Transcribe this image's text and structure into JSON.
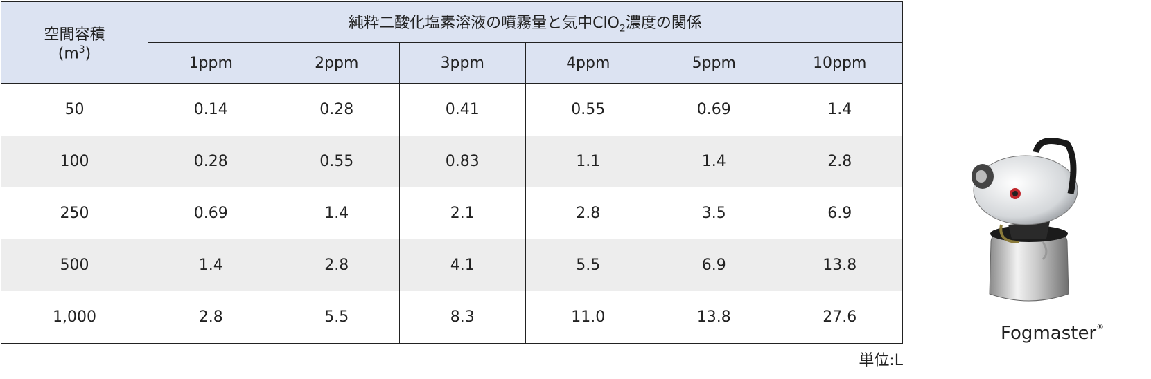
{
  "table": {
    "volume_label": "空間容積",
    "volume_unit": [
      "(m",
      "3",
      ")"
    ],
    "title": [
      "純粋二酸化塩素溶液の噴霧量と気中ClO",
      "2",
      "濃度の関係"
    ],
    "columns": [
      "1ppm",
      "2ppm",
      "3ppm",
      "4ppm",
      "5ppm",
      "10ppm"
    ],
    "rows": [
      [
        "50",
        "0.14",
        "0.28",
        "0.41",
        "0.55",
        "0.69",
        "1.4"
      ],
      [
        "100",
        "0.28",
        "0.55",
        "0.83",
        "1.1",
        "1.4",
        "2.8"
      ],
      [
        "250",
        "0.69",
        "1.4",
        "2.1",
        "2.8",
        "3.5",
        "6.9"
      ],
      [
        "500",
        "1.4",
        "2.8",
        "4.1",
        "5.5",
        "6.9",
        "13.8"
      ],
      [
        "1,000",
        "2.8",
        "5.5",
        "8.3",
        "11.0",
        "13.8",
        "27.6"
      ]
    ],
    "unit_note": "単位:L"
  },
  "product": {
    "name": "Fogmaster",
    "mark": "®"
  }
}
